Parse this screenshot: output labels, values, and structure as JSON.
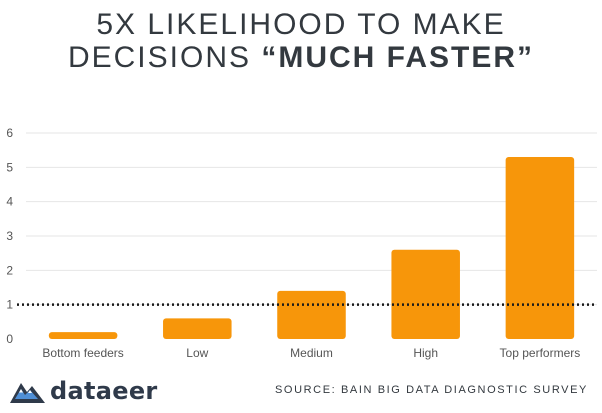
{
  "header": {
    "title_line1": "5X LIKELIHOOD TO MAKE",
    "title_line2_prefix": "DECISIONS ",
    "title_line2_emphasis": "“MUCH FASTER”"
  },
  "chart_data": {
    "type": "bar",
    "categories": [
      "Bottom feeders",
      "Low",
      "Medium",
      "High",
      "Top performers"
    ],
    "values": [
      0.2,
      0.6,
      1.4,
      2.6,
      5.3
    ],
    "ylim": [
      0,
      6
    ],
    "yticks": [
      0,
      1,
      2,
      3,
      4,
      5,
      6
    ],
    "grid": true,
    "reference_line": 1,
    "bar_color": "#f7960a",
    "grid_color": "#e6e6e6",
    "reference_line_color": "#1a1a1a",
    "axis_text_color": "#555555"
  },
  "footer": {
    "brand_name": "dataeer",
    "brand_icon": "mountain-logo-icon",
    "source": "SOURCE: BAIN BIG DATA DIAGNOSTIC SURVEY"
  }
}
